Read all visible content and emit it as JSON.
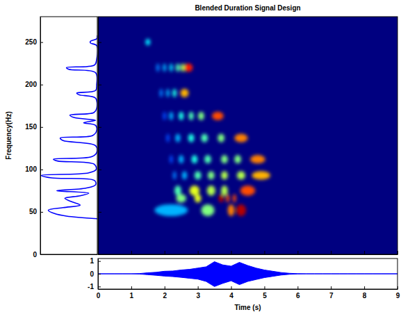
{
  "chart_data": [
    {
      "type": "heatmap",
      "title": "Blended Duration Signal Design",
      "ylabel": "Frequency(Hz)",
      "xlim": [
        0,
        9
      ],
      "xticks": [
        0,
        1,
        2,
        3,
        4,
        5,
        6,
        7,
        8,
        9
      ],
      "ylim": [
        0,
        280
      ],
      "yticks": [
        0,
        50,
        100,
        150,
        200,
        250
      ],
      "tick_labels": "y",
      "intensity_range": [
        0,
        1
      ],
      "rows": [
        {
          "frequency": 250,
          "bandwidth": 8,
          "cells": [
            {
              "time": 1.5,
              "duration": 0.15,
              "value": 0.35
            }
          ]
        },
        {
          "frequency": 220,
          "bandwidth": 10,
          "cells": [
            {
              "time": 1.8,
              "duration": 0.1,
              "value": 0.25
            },
            {
              "time": 2.0,
              "duration": 0.1,
              "value": 0.3
            },
            {
              "time": 2.2,
              "duration": 0.1,
              "value": 0.35
            },
            {
              "time": 2.4,
              "duration": 0.12,
              "value": 0.45
            },
            {
              "time": 2.55,
              "duration": 0.12,
              "value": 0.55
            },
            {
              "time": 2.72,
              "duration": 0.25,
              "value": 0.85
            }
          ]
        },
        {
          "frequency": 190,
          "bandwidth": 10,
          "cells": [
            {
              "time": 1.9,
              "duration": 0.1,
              "value": 0.25
            },
            {
              "time": 2.1,
              "duration": 0.1,
              "value": 0.3
            },
            {
              "time": 2.3,
              "duration": 0.12,
              "value": 0.4
            },
            {
              "time": 2.6,
              "duration": 0.25,
              "value": 0.7
            }
          ]
        },
        {
          "frequency": 163,
          "bandwidth": 10,
          "cells": [
            {
              "time": 2.0,
              "duration": 0.1,
              "value": 0.2
            },
            {
              "time": 2.2,
              "duration": 0.12,
              "value": 0.3
            },
            {
              "time": 2.5,
              "duration": 0.15,
              "value": 0.4
            },
            {
              "time": 2.8,
              "duration": 0.15,
              "value": 0.45
            },
            {
              "time": 3.1,
              "duration": 0.18,
              "value": 0.5
            },
            {
              "time": 3.6,
              "duration": 0.35,
              "value": 0.8
            }
          ]
        },
        {
          "frequency": 137,
          "bandwidth": 10,
          "cells": [
            {
              "time": 2.1,
              "duration": 0.1,
              "value": 0.2
            },
            {
              "time": 2.4,
              "duration": 0.15,
              "value": 0.3
            },
            {
              "time": 2.8,
              "duration": 0.18,
              "value": 0.4
            },
            {
              "time": 3.2,
              "duration": 0.2,
              "value": 0.45
            },
            {
              "time": 3.7,
              "duration": 0.2,
              "value": 0.5
            },
            {
              "time": 4.3,
              "duration": 0.4,
              "value": 0.75
            }
          ]
        },
        {
          "frequency": 112,
          "bandwidth": 10,
          "cells": [
            {
              "time": 2.2,
              "duration": 0.1,
              "value": 0.2
            },
            {
              "time": 2.5,
              "duration": 0.15,
              "value": 0.3
            },
            {
              "time": 2.9,
              "duration": 0.18,
              "value": 0.4
            },
            {
              "time": 3.3,
              "duration": 0.2,
              "value": 0.45
            },
            {
              "time": 3.8,
              "duration": 0.2,
              "value": 0.5
            },
            {
              "time": 4.2,
              "duration": 0.2,
              "value": 0.5
            },
            {
              "time": 4.8,
              "duration": 0.45,
              "value": 0.75
            }
          ]
        },
        {
          "frequency": 93,
          "bandwidth": 10,
          "cells": [
            {
              "time": 2.3,
              "duration": 0.1,
              "value": 0.25
            },
            {
              "time": 2.6,
              "duration": 0.15,
              "value": 0.3
            },
            {
              "time": 3.0,
              "duration": 0.2,
              "value": 0.45
            },
            {
              "time": 3.4,
              "duration": 0.2,
              "value": 0.5
            },
            {
              "time": 3.8,
              "duration": 0.2,
              "value": 0.55
            },
            {
              "time": 4.3,
              "duration": 0.25,
              "value": 0.55
            },
            {
              "time": 4.9,
              "duration": 0.55,
              "value": 0.7
            }
          ]
        },
        {
          "frequency": 75,
          "bandwidth": 12,
          "cells": [
            {
              "time": 2.4,
              "duration": 0.2,
              "value": 0.45
            },
            {
              "time": 2.9,
              "duration": 0.3,
              "value": 0.6
            },
            {
              "time": 3.4,
              "duration": 0.25,
              "value": 0.55
            },
            {
              "time": 3.8,
              "duration": 0.2,
              "value": 0.55
            },
            {
              "time": 4.5,
              "duration": 0.45,
              "value": 0.8
            }
          ]
        },
        {
          "frequency": 66,
          "bandwidth": 10,
          "cells": [
            {
              "time": 2.5,
              "duration": 0.3,
              "value": 0.5
            },
            {
              "time": 3.0,
              "duration": 0.2,
              "value": 0.6
            },
            {
              "time": 3.7,
              "duration": 0.15,
              "value": 0.95
            },
            {
              "time": 3.9,
              "duration": 0.1,
              "value": 0.8
            },
            {
              "time": 4.1,
              "duration": 0.1,
              "value": 0.8
            }
          ]
        },
        {
          "frequency": 52,
          "bandwidth": 14,
          "cells": [
            {
              "time": 2.2,
              "duration": 1.0,
              "value": 0.3
            },
            {
              "time": 3.3,
              "duration": 0.4,
              "value": 0.5
            },
            {
              "time": 4.0,
              "duration": 0.2,
              "value": 0.75
            },
            {
              "time": 4.3,
              "duration": 0.3,
              "value": 0.95
            }
          ]
        }
      ]
    },
    {
      "type": "line",
      "orientation": "horizontal",
      "color": "#0000ff",
      "tick_labels": false,
      "xlim": [
        0,
        1
      ],
      "xticks": [],
      "ylim": [
        0,
        280
      ],
      "yticks": [
        0,
        50,
        100,
        150,
        200,
        250
      ],
      "x": [
        42,
        45,
        48,
        52,
        55,
        58,
        62,
        66,
        69,
        72,
        75,
        78,
        82,
        87,
        90,
        93,
        96,
        100,
        106,
        110,
        112,
        115,
        120,
        128,
        134,
        137,
        140,
        146,
        152,
        155,
        158,
        161,
        164,
        167,
        172,
        184,
        188,
        190,
        193,
        200,
        214,
        218,
        220,
        223,
        230,
        246,
        249,
        251,
        254,
        258
      ],
      "values": [
        0,
        0.54,
        0.75,
        0.86,
        0.6,
        0.3,
        0.45,
        0.57,
        0.3,
        0.15,
        0.71,
        0.2,
        0.03,
        0.05,
        0.8,
        0.98,
        0.15,
        0.02,
        0.05,
        0.7,
        0.77,
        0.1,
        0.01,
        0.03,
        0.6,
        0.65,
        0.08,
        0.01,
        0.03,
        0.24,
        0.03,
        0.4,
        0.48,
        0.06,
        0.01,
        0.03,
        0.32,
        0.36,
        0.03,
        0.01,
        0.03,
        0.5,
        0.54,
        0.05,
        0.01,
        0.01,
        0.12,
        0.12,
        0.01,
        0
      ]
    },
    {
      "type": "area",
      "xlabel": "Time (s)",
      "color": "#0000ff",
      "xlim": [
        0,
        9
      ],
      "xticks": [
        0,
        1,
        2,
        3,
        4,
        5,
        6,
        7,
        8,
        9
      ],
      "ylim": [
        -1.2,
        1.2
      ],
      "yticks": [
        -1,
        0,
        1
      ],
      "x": [
        0,
        0.25,
        0.5,
        0.75,
        1,
        1.25,
        1.5,
        1.75,
        2,
        2.25,
        2.5,
        2.75,
        3,
        3.25,
        3.5,
        3.75,
        4,
        4.25,
        4.5,
        4.75,
        5,
        5.25,
        5.5,
        5.75,
        6,
        6.25,
        6.5,
        6.75,
        7,
        7.25,
        7.5,
        7.75,
        8,
        8.25,
        8.5,
        8.75,
        9
      ],
      "upper": [
        0,
        0,
        0,
        0,
        0,
        0.02,
        0.08,
        0.12,
        0.2,
        0.22,
        0.3,
        0.35,
        0.45,
        0.55,
        0.95,
        0.7,
        0.6,
        0.9,
        0.65,
        0.45,
        0.3,
        0.2,
        0.1,
        0.04,
        0.01,
        0,
        0,
        0,
        0,
        0,
        0,
        0,
        0,
        0,
        0,
        0,
        0
      ],
      "lower": [
        0,
        0,
        0,
        0,
        0,
        -0.02,
        -0.07,
        -0.12,
        -0.18,
        -0.22,
        -0.28,
        -0.35,
        -0.42,
        -0.6,
        -1.0,
        -0.75,
        -0.55,
        -0.85,
        -0.6,
        -0.45,
        -0.3,
        -0.2,
        -0.1,
        -0.04,
        -0.01,
        0,
        0,
        0,
        0,
        0,
        0,
        0,
        0,
        0,
        0,
        0,
        0
      ]
    }
  ]
}
